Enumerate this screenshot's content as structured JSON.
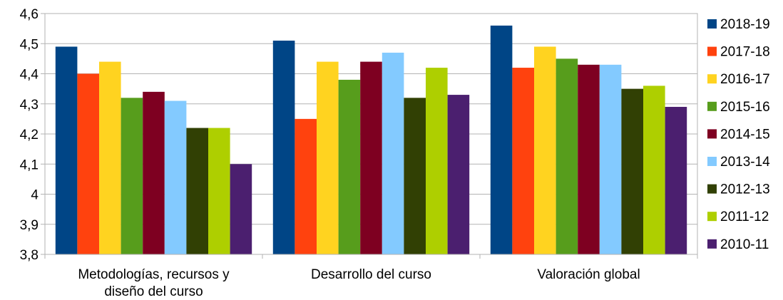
{
  "chart_data": {
    "type": "bar",
    "title": "",
    "xlabel": "",
    "ylabel": "",
    "ylim": [
      3.8,
      4.6
    ],
    "ytick_step": 0.1,
    "yticks": [
      "3,8",
      "3,9",
      "4",
      "4,1",
      "4,2",
      "4,3",
      "4,4",
      "4,5",
      "4,6"
    ],
    "grid": true,
    "legend_position": "right",
    "categories": [
      [
        "Metodologías, recursos y",
        "diseño del curso"
      ],
      [
        "Desarrollo del curso"
      ],
      [
        "Valoración global"
      ]
    ],
    "series": [
      {
        "name": "2018-19",
        "color": "#004586",
        "values": [
          4.49,
          4.51,
          4.56
        ]
      },
      {
        "name": "2017-18",
        "color": "#ff420e",
        "values": [
          4.4,
          4.25,
          4.42
        ]
      },
      {
        "name": "2016-17",
        "color": "#ffd320",
        "values": [
          4.44,
          4.44,
          4.49
        ]
      },
      {
        "name": "2015-16",
        "color": "#579d1c",
        "values": [
          4.32,
          4.38,
          4.45
        ]
      },
      {
        "name": "2014-15",
        "color": "#7e0021",
        "values": [
          4.34,
          4.44,
          4.43
        ]
      },
      {
        "name": "2013-14",
        "color": "#83caff",
        "values": [
          4.31,
          4.47,
          4.43
        ]
      },
      {
        "name": "2012-13",
        "color": "#314004",
        "values": [
          4.22,
          4.32,
          4.35
        ]
      },
      {
        "name": "2011-12",
        "color": "#aecf00",
        "values": [
          4.22,
          4.42,
          4.36
        ]
      },
      {
        "name": "2010-11",
        "color": "#4b1f6f",
        "values": [
          4.1,
          4.33,
          4.29
        ]
      }
    ]
  }
}
